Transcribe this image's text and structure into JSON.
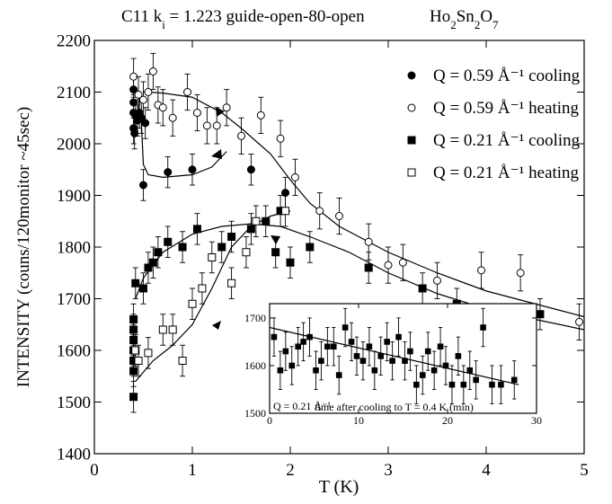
{
  "chart_data": [
    {
      "type": "scatter",
      "title": [
        {
          "text": "C11  k"
        },
        {
          "text": "i",
          "sub": true
        },
        {
          "text": " = 1.223   guide-open-80-open"
        }
      ],
      "compound": [
        {
          "text": "Ho"
        },
        {
          "text": "2",
          "sub": true
        },
        {
          "text": "Sn"
        },
        {
          "text": "2",
          "sub": true
        },
        {
          "text": "O"
        },
        {
          "text": "7",
          "sub": true
        }
      ],
      "xlabel": "T (K)",
      "ylabel": "INTENSITY (couns/120monitor  ~45sec)",
      "xlim": [
        0,
        5
      ],
      "ylim": [
        1400,
        2200
      ],
      "xticks": [
        0,
        1,
        2,
        3,
        4,
        5
      ],
      "yticks": [
        1400,
        1500,
        1600,
        1700,
        1800,
        1900,
        2000,
        2100,
        2200
      ],
      "legend": "upper right",
      "series": [
        {
          "name": "Q = 0.59 Å⁻¹ cooling",
          "marker": "circle",
          "filled": true,
          "color": "#000000",
          "x": [
            0.4,
            0.4,
            0.4,
            0.4,
            0.41,
            0.42,
            0.44,
            0.46,
            0.48,
            0.5,
            0.52,
            0.75,
            1.0,
            1.6,
            1.95
          ],
          "values": [
            2105,
            2080,
            2060,
            2030,
            2020,
            2055,
            2045,
            2060,
            2050,
            1920,
            2040,
            1945,
            1950,
            1950,
            1905
          ],
          "errors": [
            30,
            30,
            30,
            30,
            30,
            30,
            30,
            30,
            30,
            30,
            30,
            30,
            30,
            30,
            30
          ]
        },
        {
          "name": "Q = 0.59 Å⁻¹ heating",
          "marker": "circle",
          "filled": false,
          "color": "#000000",
          "x": [
            0.4,
            0.45,
            0.5,
            0.55,
            0.6,
            0.65,
            0.7,
            0.8,
            0.95,
            1.05,
            1.15,
            1.25,
            1.35,
            1.5,
            1.7,
            1.9,
            2.05,
            2.3,
            2.5,
            2.8,
            3.0,
            3.15,
            3.5,
            3.95,
            4.35,
            4.95
          ],
          "values": [
            2130,
            2095,
            2085,
            2100,
            2140,
            2075,
            2070,
            2050,
            2100,
            2060,
            2035,
            2035,
            2070,
            2015,
            2055,
            2010,
            1935,
            1870,
            1860,
            1810,
            1765,
            1770,
            1735,
            1755,
            1750,
            1655
          ],
          "errors": [
            35,
            35,
            35,
            35,
            35,
            35,
            35,
            35,
            35,
            35,
            35,
            35,
            35,
            35,
            35,
            35,
            35,
            35,
            35,
            35,
            35,
            35,
            35,
            35,
            35,
            35
          ]
        },
        {
          "name": "Q = 0.21 Å⁻¹ cooling",
          "marker": "square",
          "filled": true,
          "color": "#000000",
          "x": [
            0.4,
            0.4,
            0.4,
            0.4,
            0.4,
            0.4,
            0.4,
            0.42,
            0.5,
            0.55,
            0.6,
            0.65,
            0.75,
            0.9,
            1.05,
            1.3,
            1.4,
            1.6,
            1.75,
            1.85,
            1.9,
            2.0,
            2.2,
            2.8,
            3.35,
            3.7,
            4.55
          ],
          "values": [
            1660,
            1640,
            1620,
            1600,
            1580,
            1560,
            1510,
            1730,
            1720,
            1760,
            1770,
            1790,
            1810,
            1800,
            1835,
            1800,
            1820,
            1835,
            1850,
            1790,
            1870,
            1770,
            1800,
            1760,
            1720,
            1690,
            1670
          ],
          "errors": [
            30,
            30,
            30,
            30,
            30,
            30,
            30,
            30,
            30,
            30,
            30,
            30,
            30,
            30,
            30,
            30,
            30,
            30,
            30,
            30,
            30,
            30,
            30,
            30,
            30,
            30,
            30
          ]
        },
        {
          "name": "Q = 0.21 Å⁻¹ heating",
          "marker": "square",
          "filled": false,
          "color": "#000000",
          "x": [
            0.42,
            0.45,
            0.55,
            0.7,
            0.8,
            0.9,
            1.0,
            1.1,
            1.2,
            1.4,
            1.55,
            1.65,
            1.95
          ],
          "values": [
            1600,
            1580,
            1595,
            1640,
            1640,
            1580,
            1690,
            1720,
            1780,
            1730,
            1790,
            1850,
            1870
          ],
          "errors": [
            30,
            30,
            30,
            30,
            30,
            30,
            30,
            30,
            30,
            30,
            30,
            30,
            30
          ]
        }
      ],
      "curves": [
        {
          "x": [
            0.5,
            0.55,
            0.7,
            1.0,
            1.3,
            1.5,
            1.8,
            2.0,
            2.2,
            2.5,
            3.0,
            3.5,
            4.0,
            4.5,
            5.0
          ],
          "values": [
            2100,
            2100,
            2098,
            2090,
            2060,
            2030,
            1980,
            1930,
            1885,
            1840,
            1790,
            1750,
            1715,
            1690,
            1665
          ]
        },
        {
          "x": [
            0.48,
            0.5,
            0.55,
            0.7,
            1.0,
            1.2,
            1.35
          ],
          "values": [
            2040,
            1960,
            1940,
            1935,
            1940,
            1955,
            1985
          ]
        },
        {
          "x": [
            0.42,
            0.5,
            0.7,
            1.0,
            1.3,
            1.6,
            1.9,
            2.2,
            2.6,
            3.0,
            3.5,
            4.0,
            4.5,
            5.0
          ],
          "values": [
            1700,
            1740,
            1790,
            1825,
            1840,
            1845,
            1840,
            1820,
            1790,
            1750,
            1710,
            1680,
            1660,
            1640
          ]
        },
        {
          "x": [
            0.42,
            0.6,
            0.8,
            1.0,
            1.2,
            1.4,
            1.6,
            1.8,
            2.0
          ],
          "values": [
            1540,
            1580,
            1610,
            1650,
            1720,
            1800,
            1840,
            1860,
            1870
          ]
        }
      ]
    },
    {
      "type": "scatter",
      "xlabel": "time after cooling to T = 0.4 K (min)",
      "annotation": "Q = 0.21 Å⁻¹",
      "xlim": [
        0,
        30
      ],
      "ylim": [
        1500,
        1730
      ],
      "xticks": [
        0,
        10,
        20,
        30
      ],
      "yticks": [
        1500,
        1600,
        1700
      ],
      "series": [
        {
          "marker": "square",
          "filled": true,
          "color": "#000000",
          "x": [
            0.5,
            1.2,
            1.8,
            2.5,
            3.2,
            3.8,
            4.5,
            5.2,
            5.8,
            6.5,
            7.2,
            7.8,
            8.5,
            9.2,
            9.8,
            10.5,
            11.2,
            11.8,
            12.5,
            13.2,
            13.8,
            14.5,
            15.2,
            15.8,
            16.5,
            17.2,
            17.8,
            18.5,
            19.2,
            19.8,
            20.5,
            21.2,
            21.8,
            22.5,
            23.2,
            24,
            25,
            26,
            27.5
          ],
          "values": [
            1660,
            1590,
            1630,
            1600,
            1640,
            1650,
            1660,
            1590,
            1610,
            1640,
            1640,
            1580,
            1680,
            1650,
            1620,
            1610,
            1640,
            1590,
            1620,
            1650,
            1610,
            1660,
            1610,
            1630,
            1560,
            1580,
            1630,
            1590,
            1640,
            1600,
            1560,
            1620,
            1560,
            1590,
            1570,
            1680,
            1560,
            1560,
            1570
          ],
          "errors": [
            40,
            40,
            40,
            40,
            40,
            40,
            40,
            40,
            40,
            40,
            40,
            40,
            40,
            40,
            40,
            40,
            40,
            40,
            40,
            40,
            40,
            40,
            40,
            40,
            40,
            40,
            40,
            40,
            40,
            40,
            40,
            40,
            40,
            40,
            40,
            40,
            40,
            40,
            40
          ]
        }
      ],
      "curves": [
        {
          "x": [
            0,
            28
          ],
          "values": [
            1680,
            1560
          ]
        }
      ]
    }
  ]
}
